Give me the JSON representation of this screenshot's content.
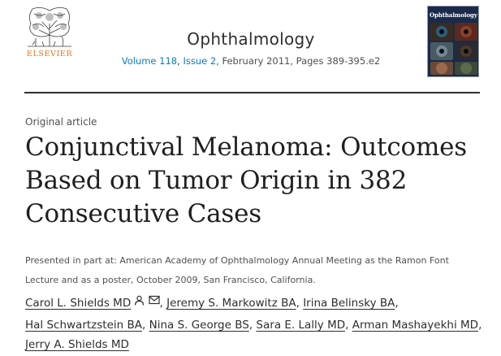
{
  "publisher": {
    "name": "ELSEVIER",
    "brand_color": "#e9711c"
  },
  "journal": {
    "title": "Ophthalmology",
    "volume_link": "Volume 118",
    "issue_link": "Issue 2",
    "citation_rest": ", February 2011, Pages 389-395.e2",
    "link_color": "#0c7dbb"
  },
  "cover": {
    "title": "Ophthalmology"
  },
  "article": {
    "type": "Original article",
    "title_lines": [
      "Conjunctival Melanoma: Outcomes",
      "Based on Tumor Origin in 382",
      "Consecutive Cases"
    ],
    "presented_lines": [
      "Presented in part at: American Academy of Ophthalmology Annual Meeting as the Ramon Font",
      "Lecture and as a poster, October 2009, San Francisco, California."
    ]
  },
  "authors": [
    {
      "name": "Carol L. Shields MD",
      "icons": [
        "person-icon",
        "mail-icon"
      ]
    },
    {
      "name": "Jeremy S. Markowitz BA"
    },
    {
      "name": "Irina Belinsky BA"
    },
    {
      "name": "Hal Schwartzstein BA"
    },
    {
      "name": "Nina S. George BS"
    },
    {
      "name": "Sara E. Lally MD"
    },
    {
      "name": "Arman Mashayekhi MD"
    },
    {
      "name": "Jerry A. Shields MD"
    }
  ]
}
